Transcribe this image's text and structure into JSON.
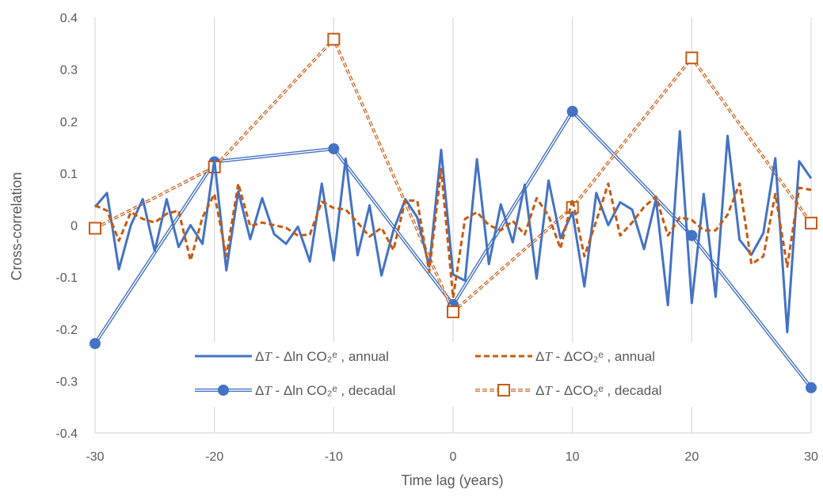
{
  "chart_data": {
    "type": "line",
    "title": "",
    "xlabel": "Time lag (years)",
    "ylabel": "Cross-correlation",
    "xlim": [
      -30,
      30
    ],
    "ylim": [
      -0.4,
      0.4
    ],
    "x_ticks": [
      -30,
      -20,
      -10,
      0,
      10,
      20,
      30
    ],
    "y_ticks": [
      0.4,
      0.3,
      0.2,
      0.1,
      0,
      -0.1,
      -0.2,
      -0.3,
      -0.4
    ],
    "x_tick_labels": [
      "-30",
      "-20",
      "-10",
      "0",
      "10",
      "20",
      "30"
    ],
    "y_tick_labels": [
      "0.4",
      "0.3",
      "0.2",
      "0.1",
      "0",
      "-0.1",
      "-0.2",
      "-0.3",
      "-0.4"
    ],
    "grid": "vertical major gridlines",
    "legend_position": "bottom-center inside plot",
    "series": [
      {
        "name": "ΔT - Δln CO₂ᵉ , annual",
        "legend_parts": {
          "var": "T",
          "rest": " - Δln CO₂ᵉ , annual"
        },
        "color": "#4472C4",
        "style": "solid",
        "x": [
          -30,
          -29,
          -28,
          -27,
          -26,
          -25,
          -24,
          -23,
          -22,
          -21,
          -20,
          -19,
          -18,
          -17,
          -16,
          -15,
          -14,
          -13,
          -12,
          -11,
          -10,
          -9,
          -8,
          -7,
          -6,
          -5,
          -4,
          -3,
          -2,
          -1,
          0,
          1,
          2,
          3,
          4,
          5,
          6,
          7,
          8,
          9,
          10,
          11,
          12,
          13,
          14,
          15,
          16,
          17,
          18,
          19,
          20,
          21,
          22,
          23,
          24,
          25,
          26,
          27,
          28,
          29,
          30
        ],
        "y": [
          0.035,
          0.062,
          -0.085,
          0.0,
          0.05,
          -0.05,
          0.05,
          -0.042,
          0.0,
          -0.036,
          0.126,
          -0.087,
          0.065,
          -0.027,
          0.052,
          -0.017,
          -0.036,
          -0.003,
          -0.07,
          0.08,
          -0.068,
          0.128,
          -0.058,
          0.038,
          -0.097,
          -0.01,
          0.05,
          0.015,
          -0.08,
          0.145,
          -0.095,
          -0.107,
          0.127,
          -0.075,
          0.04,
          -0.033,
          0.078,
          -0.103,
          0.086,
          -0.025,
          0.025,
          -0.118,
          0.062,
          0.0,
          0.044,
          0.03,
          -0.046,
          0.05,
          -0.154,
          0.181,
          -0.15,
          0.06,
          -0.138,
          0.172,
          -0.028,
          -0.057,
          -0.015,
          0.129,
          -0.206,
          0.123,
          0.09
        ]
      },
      {
        "name": "ΔT - ΔCO₂ᵉ , annual",
        "legend_parts": {
          "var": "T",
          "rest": " - ΔCO₂ᵉ , annual"
        },
        "color": "#C55A11",
        "style": "dashed",
        "x": [
          -30,
          -29,
          -28,
          -27,
          -26,
          -25,
          -24,
          -23,
          -22,
          -21,
          -20,
          -19,
          -18,
          -17,
          -16,
          -15,
          -14,
          -13,
          -12,
          -11,
          -10,
          -9,
          -8,
          -7,
          -6,
          -5,
          -4,
          -3,
          -2,
          -1,
          0,
          1,
          2,
          3,
          4,
          5,
          6,
          7,
          8,
          9,
          10,
          11,
          12,
          13,
          14,
          15,
          16,
          17,
          18,
          19,
          20,
          21,
          22,
          23,
          24,
          25,
          26,
          27,
          28,
          29,
          30
        ],
        "y": [
          0.038,
          0.028,
          -0.03,
          0.025,
          0.012,
          0.005,
          0.022,
          0.028,
          -0.068,
          0.015,
          0.06,
          -0.06,
          0.08,
          -0.002,
          0.005,
          0.0,
          -0.005,
          -0.02,
          -0.018,
          0.045,
          0.033,
          0.03,
          0.005,
          -0.022,
          -0.005,
          -0.048,
          0.048,
          0.047,
          -0.09,
          0.108,
          -0.14,
          0.012,
          0.025,
          0.0,
          -0.01,
          0.008,
          -0.018,
          0.052,
          0.018,
          -0.045,
          0.05,
          -0.06,
          0.008,
          0.08,
          -0.02,
          0.005,
          0.035,
          0.055,
          -0.02,
          0.015,
          0.01,
          -0.01,
          -0.01,
          0.02,
          0.08,
          -0.075,
          -0.06,
          0.06,
          -0.08,
          0.072,
          0.068
        ]
      },
      {
        "name": "ΔT - Δln CO₂ᵉ , decadal",
        "legend_parts": {
          "var": "T",
          "rest": " - Δln CO₂ᵉ , decadal"
        },
        "color": "#4472C4",
        "style": "double-line with circle markers",
        "x": [
          -30,
          -20,
          -10,
          0,
          10,
          20,
          30
        ],
        "y": [
          -0.228,
          0.122,
          0.147,
          -0.153,
          0.219,
          -0.02,
          -0.313
        ]
      },
      {
        "name": "ΔT - ΔCO₂ᵉ , decadal",
        "legend_parts": {
          "var": "T",
          "rest": " - ΔCO₂ᵉ , decadal"
        },
        "color": "#C55A11",
        "style": "double-dashed with square markers",
        "x": [
          -30,
          -20,
          -10,
          0,
          10,
          20,
          30
        ],
        "y": [
          -0.006,
          0.112,
          0.358,
          -0.167,
          0.034,
          0.322,
          0.004
        ]
      }
    ]
  }
}
